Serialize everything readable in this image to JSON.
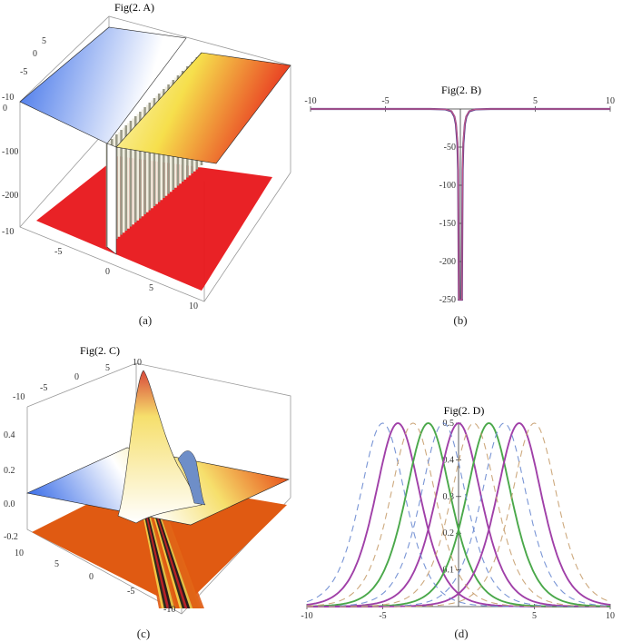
{
  "chart_data": [
    {
      "panel": "A",
      "type": "surface3d",
      "title": "Fig(2. A)",
      "caption": "(a)",
      "x_ticks": [
        "-10",
        "-5",
        "0",
        "5",
        "10"
      ],
      "y_ticks": [
        "-10",
        "-5",
        "0",
        "5"
      ],
      "z_ticks": [
        "0",
        "-100",
        "-200"
      ],
      "zlim": [
        -250,
        0
      ],
      "colors": {
        "low": "#3b6ee8",
        "mid": "#ffffff",
        "high": "#f4e04a",
        "edge": "#e83b2b",
        "floor": "#e8161a"
      }
    },
    {
      "panel": "B",
      "type": "line",
      "title": "Fig(2. B)",
      "caption": "(b)",
      "xlim": [
        -10,
        10
      ],
      "ylim": [
        -250,
        0
      ],
      "x_ticks": [
        -10,
        -5,
        5,
        10
      ],
      "y_ticks": [
        -50,
        -100,
        -150,
        -200,
        -250
      ],
      "series": [
        {
          "color": "#5a3a8a",
          "x": [
            -10,
            -5,
            -2,
            -1,
            -0.6,
            -0.4,
            -0.3,
            -0.2,
            -0.15,
            -0.1,
            0,
            0.1,
            0.15,
            0.2,
            0.3,
            0.4,
            0.6,
            1,
            2,
            5,
            10
          ],
          "y": [
            0,
            0,
            0,
            -0.5,
            -3,
            -10,
            -20,
            -45,
            -80,
            -250,
            -250,
            -250,
            -80,
            -45,
            -20,
            -10,
            -3,
            -0.5,
            0,
            0,
            0
          ]
        },
        {
          "color": "#c25a8a",
          "x": [
            -10,
            -5,
            -2,
            -1,
            -0.6,
            -0.4,
            -0.3,
            -0.2,
            -0.15,
            -0.1,
            0,
            0.1,
            0.15,
            0.2,
            0.3,
            0.4,
            0.6,
            1,
            2,
            5,
            10
          ],
          "y": [
            0,
            0,
            0,
            -0.4,
            -2.5,
            -9,
            -18,
            -40,
            -70,
            -250,
            -250,
            -250,
            -70,
            -40,
            -18,
            -9,
            -2.5,
            -0.4,
            0,
            0,
            0
          ]
        }
      ]
    },
    {
      "panel": "C",
      "type": "surface3d",
      "title": "Fig(2. C)",
      "caption": "(c)",
      "x_ticks": [
        "10",
        "5",
        "0",
        "-5",
        "-10"
      ],
      "y_ticks": [
        "-10",
        "-5",
        "0",
        "5",
        "10"
      ],
      "z_ticks": [
        "0.4",
        "0.2",
        "0.0",
        "-0.2"
      ],
      "zlim": [
        -0.25,
        0.5
      ],
      "colors": {
        "low": "#3b6ee8",
        "mid": "#ffffff",
        "high": "#f4d04a",
        "edge": "#e8531b",
        "floor": "#e05a12"
      }
    },
    {
      "panel": "D",
      "type": "line",
      "title": "Fig(2. D)",
      "caption": "(d)",
      "xlim": [
        -10,
        10
      ],
      "ylim": [
        0,
        0.5
      ],
      "x_ticks": [
        -10,
        -5,
        5,
        10
      ],
      "y_ticks": [
        0.1,
        0.2,
        0.3,
        0.4,
        0.5
      ],
      "function": "0.5*sech^2(0.5*(x-c))",
      "series": [
        {
          "color": "#a040a8",
          "dashed": false,
          "center": -4
        },
        {
          "color": "#4aa84a",
          "dashed": false,
          "center": -2
        },
        {
          "color": "#a040a8",
          "dashed": false,
          "center": 0
        },
        {
          "color": "#4aa84a",
          "dashed": false,
          "center": 2
        },
        {
          "color": "#a040a8",
          "dashed": false,
          "center": 4
        },
        {
          "color": "#6a8ad0",
          "dashed": true,
          "center": -5
        },
        {
          "color": "#c8a070",
          "dashed": true,
          "center": -3
        },
        {
          "color": "#6a8ad0",
          "dashed": true,
          "center": -1
        },
        {
          "color": "#c8a070",
          "dashed": true,
          "center": 1
        },
        {
          "color": "#6a8ad0",
          "dashed": true,
          "center": 3
        },
        {
          "color": "#c8a070",
          "dashed": true,
          "center": 5
        }
      ]
    }
  ]
}
